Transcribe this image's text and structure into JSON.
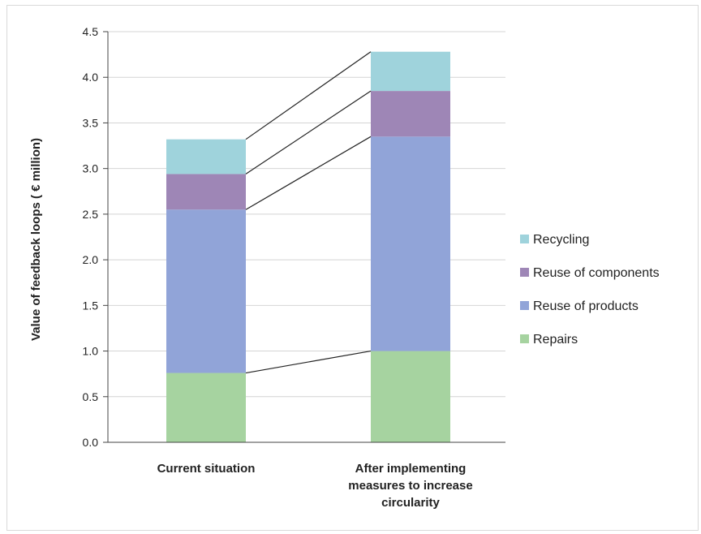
{
  "chart_data": {
    "type": "bar",
    "stacked": true,
    "title": "",
    "ylabel": "Value of feedback loops ( € million)",
    "xlabel": "",
    "ylim": [
      0,
      4.5
    ],
    "yticks": [
      "0.0",
      "0.5",
      "1.0",
      "1.5",
      "2.0",
      "2.5",
      "3.0",
      "3.5",
      "4.0",
      "4.5"
    ],
    "grid": true,
    "legend_position": "right",
    "categories": [
      [
        "Current situation"
      ],
      [
        "After implementing",
        "measures to increase",
        "circularity"
      ]
    ],
    "series": [
      {
        "name": "Repairs",
        "values": [
          0.76,
          1.0
        ],
        "color": "#a6d3a0"
      },
      {
        "name": "Reuse of products",
        "values": [
          1.79,
          2.35
        ],
        "color": "#91a4d8"
      },
      {
        "name": "Reuse of components",
        "values": [
          0.39,
          0.5
        ],
        "color": "#9e86b6"
      },
      {
        "name": "Recycling",
        "values": [
          0.38,
          0.43
        ],
        "color": "#9fd3dc"
      }
    ],
    "connector_lines": true
  }
}
